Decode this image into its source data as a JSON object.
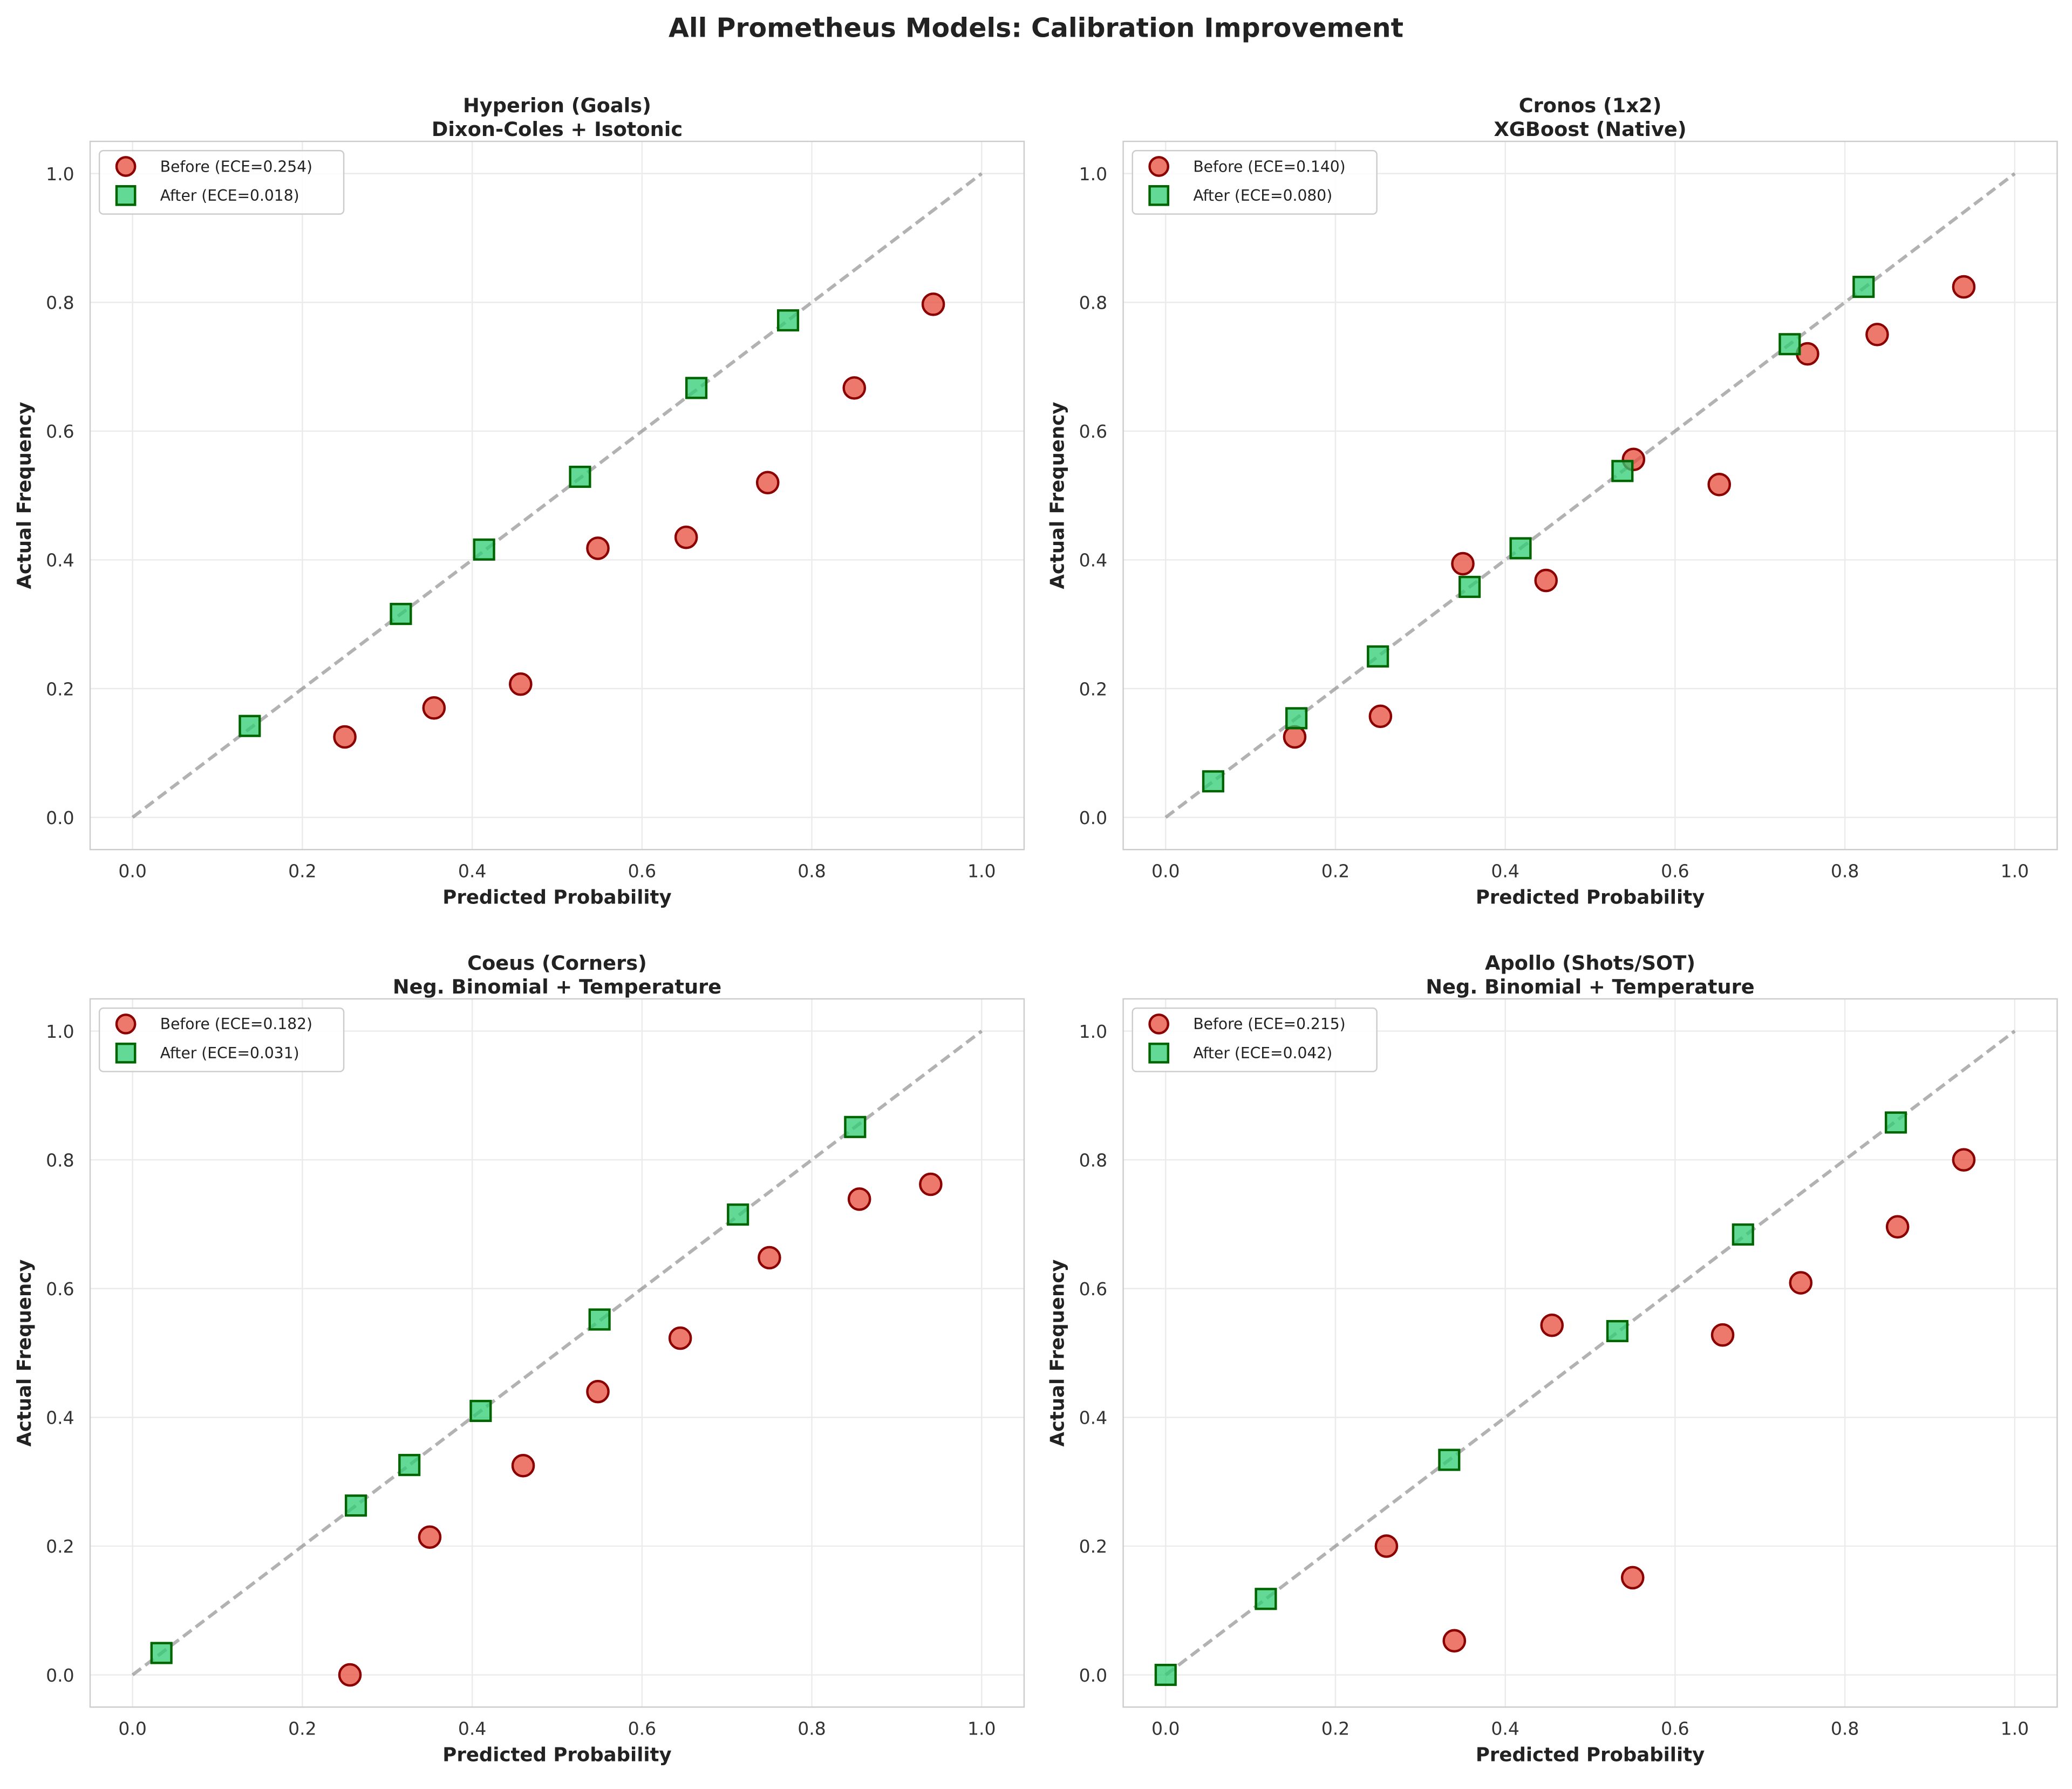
{
  "title": "All Prometheus Models: Calibration Improvement",
  "colors": {
    "before_fill": "#e74c3c",
    "before_edge": "#8b0000",
    "after_fill": "#2ecc71",
    "after_edge": "#006400",
    "diagonal": "#808080",
    "grid": "#ebebeb"
  },
  "chart_data": [
    {
      "type": "scatter",
      "title": "Hyperion (Goals)",
      "subtitle": "Dixon-Coles + Isotonic",
      "xlabel": "Predicted Probability",
      "ylabel": "Actual Frequency",
      "xlim": [
        -0.05,
        1.05
      ],
      "ylim": [
        -0.05,
        1.05
      ],
      "xticks": [
        "0.0",
        "0.2",
        "0.4",
        "0.6",
        "0.8",
        "1.0"
      ],
      "yticks": [
        "0.0",
        "0.2",
        "0.4",
        "0.6",
        "0.8",
        "1.0"
      ],
      "grid": true,
      "legend": "top-left",
      "reference_line": "y = x (dashed)",
      "series": [
        {
          "name": "Before (ECE=0.254)",
          "marker": "circle",
          "x": [
            0.25,
            0.355,
            0.457,
            0.548,
            0.652,
            0.748,
            0.85,
            0.943
          ],
          "y": [
            0.125,
            0.17,
            0.207,
            0.418,
            0.435,
            0.52,
            0.667,
            0.797
          ]
        },
        {
          "name": "After (ECE=0.018)",
          "marker": "square",
          "x": [
            0.138,
            0.316,
            0.414,
            0.527,
            0.664,
            0.772
          ],
          "y": [
            0.142,
            0.316,
            0.416,
            0.529,
            0.667,
            0.772
          ]
        }
      ]
    },
    {
      "type": "scatter",
      "title": "Cronos (1x2)",
      "subtitle": "XGBoost (Native)",
      "xlabel": "Predicted Probability",
      "ylabel": "Actual Frequency",
      "xlim": [
        -0.05,
        1.05
      ],
      "ylim": [
        -0.05,
        1.05
      ],
      "xticks": [
        "0.0",
        "0.2",
        "0.4",
        "0.6",
        "0.8",
        "1.0"
      ],
      "yticks": [
        "0.0",
        "0.2",
        "0.4",
        "0.6",
        "0.8",
        "1.0"
      ],
      "grid": true,
      "legend": "top-left",
      "reference_line": "y = x (dashed)",
      "series": [
        {
          "name": "Before (ECE=0.140)",
          "marker": "circle",
          "x": [
            0.152,
            0.253,
            0.35,
            0.448,
            0.551,
            0.652,
            0.756,
            0.838,
            0.94
          ],
          "y": [
            0.125,
            0.157,
            0.394,
            0.368,
            0.556,
            0.517,
            0.72,
            0.75,
            0.824
          ]
        },
        {
          "name": "After (ECE=0.080)",
          "marker": "square",
          "x": [
            0.056,
            0.154,
            0.25,
            0.358,
            0.418,
            0.538,
            0.735,
            0.822
          ],
          "y": [
            0.056,
            0.154,
            0.25,
            0.358,
            0.418,
            0.538,
            0.735,
            0.824
          ]
        }
      ]
    },
    {
      "type": "scatter",
      "title": "Coeus (Corners)",
      "subtitle": "Neg. Binomial + Temperature",
      "xlabel": "Predicted Probability",
      "ylabel": "Actual Frequency",
      "xlim": [
        -0.05,
        1.05
      ],
      "ylim": [
        -0.05,
        1.05
      ],
      "xticks": [
        "0.0",
        "0.2",
        "0.4",
        "0.6",
        "0.8",
        "1.0"
      ],
      "yticks": [
        "0.0",
        "0.2",
        "0.4",
        "0.6",
        "0.8",
        "1.0"
      ],
      "grid": true,
      "legend": "top-left",
      "reference_line": "y = x (dashed)",
      "series": [
        {
          "name": "Before (ECE=0.182)",
          "marker": "circle",
          "x": [
            0.256,
            0.35,
            0.46,
            0.548,
            0.645,
            0.75,
            0.856,
            0.94
          ],
          "y": [
            0.0,
            0.214,
            0.325,
            0.44,
            0.523,
            0.648,
            0.739,
            0.762
          ]
        },
        {
          "name": "After (ECE=0.031)",
          "marker": "square",
          "x": [
            0.034,
            0.263,
            0.326,
            0.41,
            0.55,
            0.713,
            0.851
          ],
          "y": [
            0.034,
            0.263,
            0.326,
            0.41,
            0.552,
            0.715,
            0.851
          ]
        }
      ]
    },
    {
      "type": "scatter",
      "title": "Apollo (Shots/SOT)",
      "subtitle": "Neg. Binomial + Temperature",
      "xlabel": "Predicted Probability",
      "ylabel": "Actual Frequency",
      "xlim": [
        -0.05,
        1.05
      ],
      "ylim": [
        -0.05,
        1.05
      ],
      "xticks": [
        "0.0",
        "0.2",
        "0.4",
        "0.6",
        "0.8",
        "1.0"
      ],
      "yticks": [
        "0.0",
        "0.2",
        "0.4",
        "0.6",
        "0.8",
        "1.0"
      ],
      "grid": true,
      "legend": "top-left",
      "reference_line": "y = x (dashed)",
      "series": [
        {
          "name": "Before (ECE=0.215)",
          "marker": "circle",
          "x": [
            0.26,
            0.34,
            0.455,
            0.55,
            0.656,
            0.748,
            0.862,
            0.94
          ],
          "y": [
            0.2,
            0.053,
            0.543,
            0.151,
            0.528,
            0.609,
            0.696,
            0.8
          ]
        },
        {
          "name": "After (ECE=0.042)",
          "marker": "square",
          "x": [
            0.0,
            0.118,
            0.334,
            0.532,
            0.68,
            0.86
          ],
          "y": [
            0.0,
            0.118,
            0.334,
            0.534,
            0.684,
            0.858
          ]
        }
      ]
    }
  ]
}
